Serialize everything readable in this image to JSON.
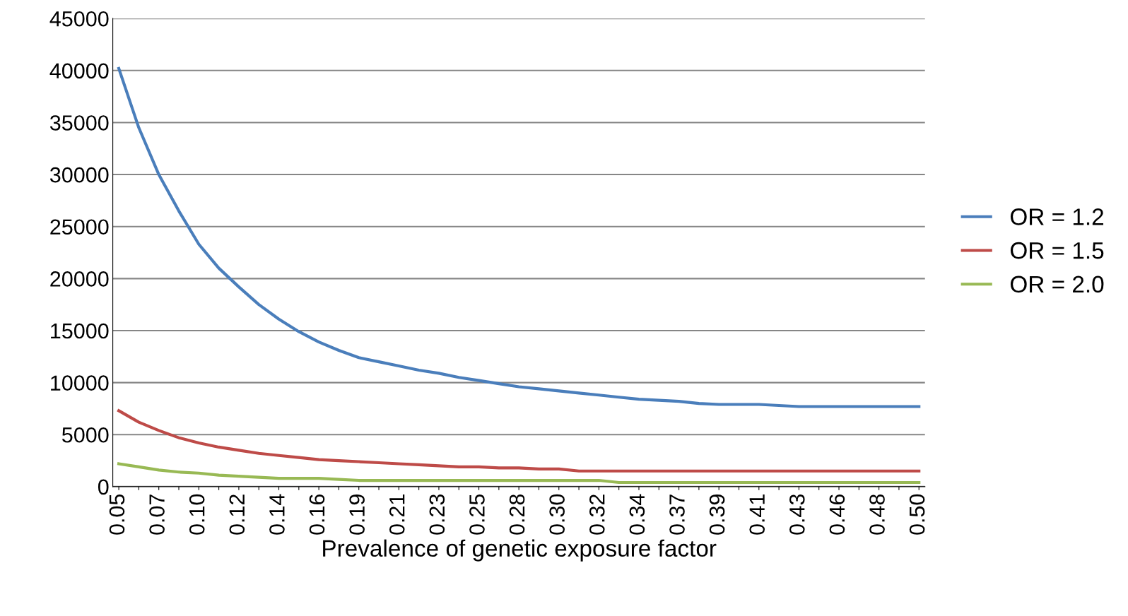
{
  "chart_data": {
    "type": "line",
    "xlabel": "Prevalence of genetic exposure factor",
    "categories": [
      "0.05",
      null,
      "0.07",
      null,
      "0.10",
      null,
      "0.12",
      null,
      "0.14",
      null,
      "0.16",
      null,
      "0.19",
      null,
      "0.21",
      null,
      "0.23",
      null,
      "0.25",
      null,
      "0.28",
      null,
      "0.30",
      null,
      "0.32",
      null,
      "0.34",
      null,
      "0.37",
      null,
      "0.39",
      null,
      "0.41",
      null,
      "0.43",
      null,
      "0.46",
      null,
      "0.48",
      null,
      "0.50"
    ],
    "series": [
      {
        "name": "OR = 1.2",
        "color": "#4a7ebb",
        "values": [
          40200,
          34500,
          30000,
          26500,
          23300,
          21000,
          19200,
          17500,
          16100,
          14900,
          13900,
          13100,
          12400,
          12000,
          11600,
          11200,
          10900,
          10500,
          10200,
          9900,
          9600,
          9400,
          9200,
          9000,
          8800,
          8600,
          8400,
          8300,
          8200,
          8000,
          7900,
          7900,
          7900,
          7800,
          7700,
          7700,
          7700,
          7700,
          7700,
          7700,
          7700
        ]
      },
      {
        "name": "OR = 1.5",
        "color": "#be4b48",
        "values": [
          7300,
          6200,
          5400,
          4700,
          4200,
          3800,
          3500,
          3200,
          3000,
          2800,
          2600,
          2500,
          2400,
          2300,
          2200,
          2100,
          2000,
          1900,
          1900,
          1800,
          1800,
          1700,
          1700,
          1500,
          1500,
          1500,
          1500,
          1500,
          1500,
          1500,
          1500,
          1500,
          1500,
          1500,
          1500,
          1500,
          1500,
          1500,
          1500,
          1500,
          1500
        ]
      },
      {
        "name": "OR = 2.0",
        "color": "#98b954",
        "values": [
          2200,
          1900,
          1600,
          1400,
          1300,
          1100,
          1000,
          900,
          800,
          800,
          800,
          700,
          600,
          600,
          600,
          600,
          600,
          600,
          600,
          600,
          600,
          600,
          600,
          600,
          600,
          400,
          400,
          400,
          400,
          400,
          400,
          400,
          400,
          400,
          400,
          400,
          400,
          400,
          400,
          400,
          400
        ]
      }
    ],
    "ylim": [
      0,
      45000
    ],
    "yticks": [
      0,
      5000,
      10000,
      15000,
      20000,
      25000,
      30000,
      35000,
      40000,
      45000
    ],
    "grid": "y",
    "legend": "right",
    "marker": "none",
    "line_style": "solid"
  }
}
